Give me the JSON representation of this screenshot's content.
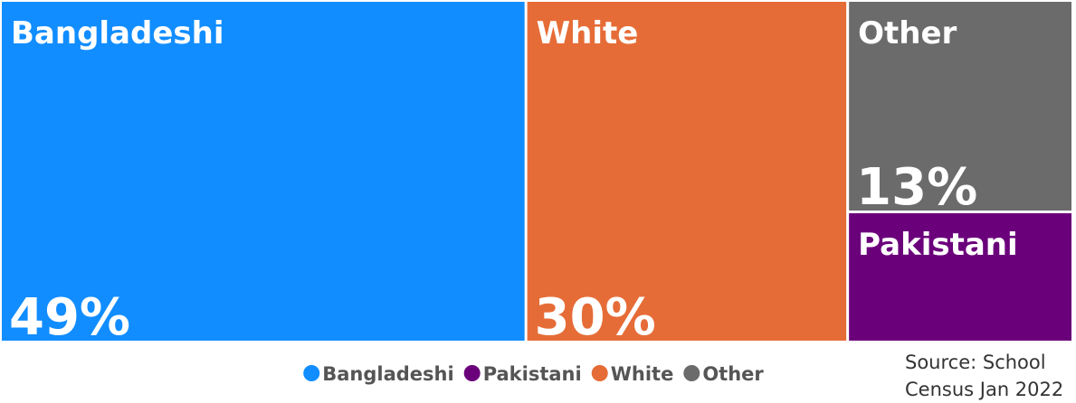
{
  "chart_data": {
    "type": "treemap",
    "categories": [
      "Bangladeshi",
      "Pakistani",
      "White",
      "Other"
    ],
    "values": [
      49,
      8,
      30,
      13
    ],
    "value_labels": [
      "49%",
      null,
      "30%",
      "13%"
    ],
    "colors": [
      "#118dff",
      "#6b007b",
      "#e66c37",
      "#6b6b6b"
    ],
    "source": "Source: School Census Jan 2022"
  }
}
